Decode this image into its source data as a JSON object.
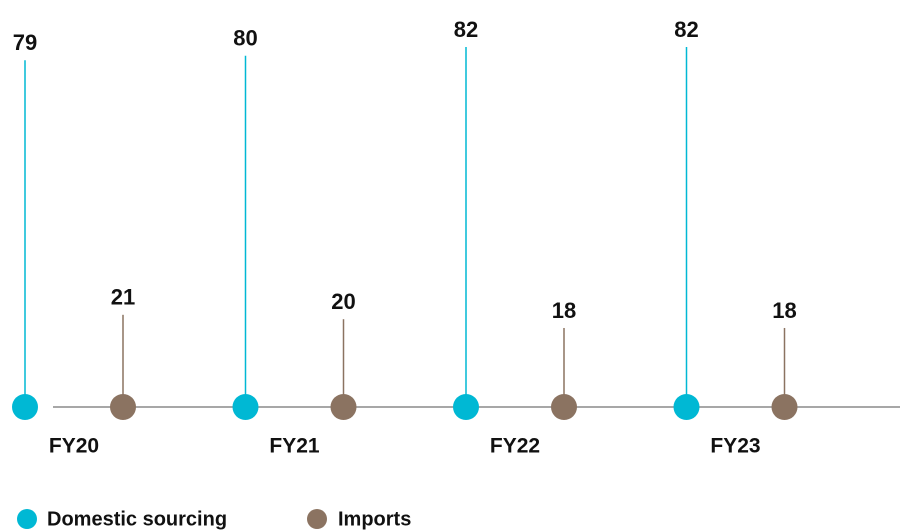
{
  "chart_data": {
    "type": "lollipop",
    "categories": [
      "FY20",
      "FY21",
      "FY22",
      "FY23"
    ],
    "series": [
      {
        "name": "Domestic sourcing",
        "color": "#00b8d4",
        "values": [
          79,
          80,
          82,
          82
        ]
      },
      {
        "name": "Imports",
        "color": "#8b7361",
        "values": [
          21,
          20,
          18,
          18
        ]
      }
    ]
  }
}
